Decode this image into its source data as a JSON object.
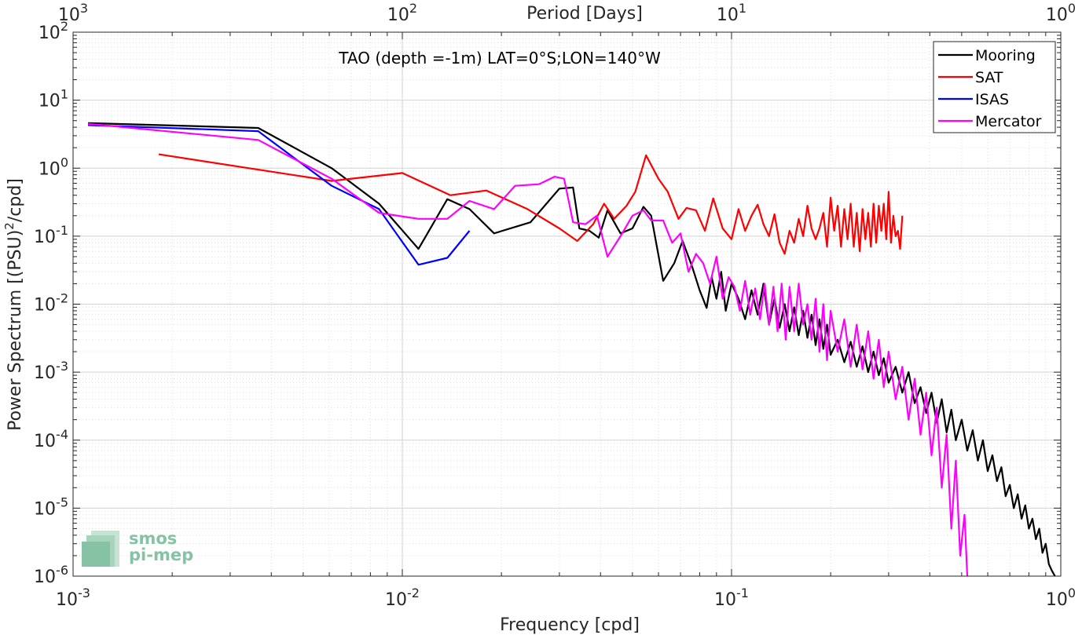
{
  "chart_data": {
    "type": "line",
    "title": "TAO (depth =-1m) LAT=0°S;LON=140°W",
    "xlabel": "Frequency [cpd]",
    "ylabel": "Power Spectrum [(PSU)²/cpd]",
    "top_xlabel": "Period [Days]",
    "x_scale": "log",
    "y_scale": "log",
    "xlim": [
      0.001,
      1
    ],
    "ylim": [
      1e-06,
      100
    ],
    "grid": true,
    "legend_position": "top-right",
    "x_ticks": [
      {
        "base": "10",
        "exp": "-3"
      },
      {
        "base": "10",
        "exp": "-2"
      },
      {
        "base": "10",
        "exp": "-1"
      },
      {
        "base": "10",
        "exp": "0"
      }
    ],
    "top_ticks": [
      {
        "base": "10",
        "exp": "3"
      },
      {
        "base": "10",
        "exp": "2"
      },
      {
        "base": "10",
        "exp": "1"
      },
      {
        "base": "10",
        "exp": "0"
      }
    ],
    "y_ticks": [
      {
        "base": "10",
        "exp": "2"
      },
      {
        "base": "10",
        "exp": "1"
      },
      {
        "base": "10",
        "exp": "0"
      },
      {
        "base": "10",
        "exp": "-1"
      },
      {
        "base": "10",
        "exp": "-2"
      },
      {
        "base": "10",
        "exp": "-3"
      },
      {
        "base": "10",
        "exp": "-4"
      },
      {
        "base": "10",
        "exp": "-5"
      },
      {
        "base": "10",
        "exp": "-6"
      }
    ],
    "series": [
      {
        "name": "Mooring",
        "color": "#000000",
        "x": [
          0.00111,
          0.00365,
          0.0061,
          0.0085,
          0.0112,
          0.0137,
          0.016,
          0.019,
          0.0245,
          0.03,
          0.033,
          0.0345,
          0.037,
          0.0395,
          0.042,
          0.046,
          0.05,
          0.054,
          0.057,
          0.062,
          0.067,
          0.071,
          0.076,
          0.08,
          0.084,
          0.087,
          0.09,
          0.093,
          0.096,
          0.1,
          0.105,
          0.11,
          0.115,
          0.12,
          0.125,
          0.13,
          0.135,
          0.14,
          0.145,
          0.15,
          0.155,
          0.16,
          0.165,
          0.17,
          0.175,
          0.18,
          0.185,
          0.19,
          0.195,
          0.2,
          0.21,
          0.22,
          0.23,
          0.24,
          0.25,
          0.26,
          0.27,
          0.28,
          0.29,
          0.3,
          0.315,
          0.33,
          0.345,
          0.36,
          0.375,
          0.39,
          0.405,
          0.42,
          0.435,
          0.45,
          0.465,
          0.48,
          0.5,
          0.52,
          0.54,
          0.56,
          0.58,
          0.6,
          0.62,
          0.64,
          0.66,
          0.68,
          0.7,
          0.72,
          0.74,
          0.76,
          0.78,
          0.8,
          0.82,
          0.84,
          0.86,
          0.88,
          0.9,
          0.92,
          0.94,
          0.96
        ],
        "y": [
          4.6,
          3.9,
          1.0,
          0.3,
          0.065,
          0.35,
          0.25,
          0.11,
          0.16,
          0.5,
          0.52,
          0.13,
          0.12,
          0.095,
          0.24,
          0.11,
          0.13,
          0.27,
          0.2,
          0.022,
          0.04,
          0.085,
          0.035,
          0.016,
          0.0088,
          0.025,
          0.012,
          0.03,
          0.008,
          0.02,
          0.012,
          0.006,
          0.016,
          0.007,
          0.02,
          0.005,
          0.012,
          0.0045,
          0.01,
          0.004,
          0.009,
          0.0035,
          0.008,
          0.0032,
          0.007,
          0.0025,
          0.006,
          0.0022,
          0.005,
          0.0018,
          0.003,
          0.0014,
          0.0028,
          0.0012,
          0.0024,
          0.001,
          0.002,
          0.0009,
          0.0016,
          0.0007,
          0.0012,
          0.0005,
          0.001,
          0.00035,
          0.0006,
          0.00025,
          0.0005,
          0.00018,
          0.0004,
          0.00013,
          0.00028,
          0.0001,
          0.0002,
          7e-05,
          0.00014,
          5e-05,
          0.0001,
          3.5e-05,
          6e-05,
          2.5e-05,
          4e-05,
          1.5e-05,
          2.2e-05,
          1e-05,
          1.6e-05,
          7e-06,
          1.1e-05,
          5e-06,
          7e-06,
          3.5e-06,
          5e-06,
          2.2e-06,
          3e-06,
          1.5e-06,
          1.2e-06,
          1e-06
        ]
      },
      {
        "name": "SAT",
        "color": "#ff0000",
        "x": [
          0.00182,
          0.0061,
          0.01,
          0.014,
          0.018,
          0.024,
          0.03,
          0.034,
          0.038,
          0.041,
          0.044,
          0.048,
          0.051,
          0.055,
          0.06,
          0.064,
          0.069,
          0.073,
          0.078,
          0.083,
          0.088,
          0.094,
          0.1,
          0.105,
          0.11,
          0.115,
          0.12,
          0.125,
          0.13,
          0.135,
          0.14,
          0.145,
          0.15,
          0.155,
          0.16,
          0.165,
          0.17,
          0.175,
          0.18,
          0.185,
          0.19,
          0.195,
          0.2,
          0.205,
          0.21,
          0.215,
          0.22,
          0.225,
          0.23,
          0.235,
          0.24,
          0.245,
          0.25,
          0.255,
          0.26,
          0.265,
          0.27,
          0.275,
          0.28,
          0.285,
          0.29,
          0.295,
          0.3,
          0.305,
          0.31,
          0.315,
          0.32,
          0.325,
          0.33
        ],
        "y": [
          1.6,
          0.65,
          0.85,
          0.4,
          0.47,
          0.25,
          0.13,
          0.085,
          0.15,
          0.3,
          0.18,
          0.28,
          0.45,
          1.55,
          0.7,
          0.45,
          0.18,
          0.26,
          0.24,
          0.12,
          0.36,
          0.13,
          0.09,
          0.25,
          0.12,
          0.2,
          0.29,
          0.15,
          0.1,
          0.21,
          0.08,
          0.055,
          0.12,
          0.08,
          0.18,
          0.1,
          0.28,
          0.13,
          0.09,
          0.13,
          0.22,
          0.07,
          0.37,
          0.12,
          0.28,
          0.07,
          0.25,
          0.09,
          0.3,
          0.07,
          0.22,
          0.06,
          0.25,
          0.09,
          0.22,
          0.07,
          0.3,
          0.08,
          0.28,
          0.12,
          0.3,
          0.09,
          0.45,
          0.08,
          0.2,
          0.1,
          0.12,
          0.065,
          0.2
        ]
      },
      {
        "name": "ISAS",
        "color": "#0000ff",
        "x": [
          0.00111,
          0.00365,
          0.0061,
          0.0085,
          0.0112,
          0.0137,
          0.016
        ],
        "y": [
          4.3,
          3.5,
          0.55,
          0.25,
          0.038,
          0.048,
          0.12
        ]
      },
      {
        "name": "Mercator",
        "color": "#ff00ff",
        "x": [
          0.00111,
          0.00365,
          0.0061,
          0.0085,
          0.0112,
          0.0137,
          0.016,
          0.019,
          0.022,
          0.026,
          0.029,
          0.031,
          0.033,
          0.036,
          0.039,
          0.042,
          0.046,
          0.05,
          0.054,
          0.057,
          0.062,
          0.066,
          0.07,
          0.074,
          0.078,
          0.082,
          0.086,
          0.09,
          0.094,
          0.098,
          0.102,
          0.106,
          0.11,
          0.114,
          0.118,
          0.122,
          0.126,
          0.13,
          0.134,
          0.138,
          0.142,
          0.146,
          0.15,
          0.155,
          0.16,
          0.165,
          0.17,
          0.175,
          0.18,
          0.185,
          0.19,
          0.195,
          0.2,
          0.21,
          0.22,
          0.23,
          0.24,
          0.25,
          0.26,
          0.27,
          0.28,
          0.29,
          0.3,
          0.315,
          0.33,
          0.345,
          0.36,
          0.375,
          0.39,
          0.405,
          0.42,
          0.435,
          0.45,
          0.465,
          0.48,
          0.495,
          0.51,
          0.52
        ],
        "y": [
          4.5,
          2.6,
          0.7,
          0.22,
          0.18,
          0.18,
          0.33,
          0.25,
          0.55,
          0.58,
          0.75,
          0.7,
          0.16,
          0.15,
          0.2,
          0.05,
          0.1,
          0.2,
          0.24,
          0.17,
          0.17,
          0.08,
          0.11,
          0.03,
          0.055,
          0.04,
          0.02,
          0.05,
          0.012,
          0.025,
          0.018,
          0.008,
          0.022,
          0.007,
          0.017,
          0.006,
          0.02,
          0.005,
          0.018,
          0.004,
          0.02,
          0.003,
          0.018,
          0.004,
          0.02,
          0.005,
          0.01,
          0.003,
          0.012,
          0.002,
          0.01,
          0.0015,
          0.008,
          0.002,
          0.006,
          0.0012,
          0.005,
          0.0011,
          0.004,
          0.0008,
          0.003,
          0.0006,
          0.002,
          0.0004,
          0.0012,
          0.0002,
          0.0008,
          0.00012,
          0.0005,
          6e-05,
          0.0003,
          2e-05,
          0.00012,
          5e-06,
          5e-05,
          2e-06,
          8e-06,
          1e-06
        ]
      }
    ]
  },
  "logo": {
    "line1": "smos",
    "line2": "pi-mep"
  }
}
